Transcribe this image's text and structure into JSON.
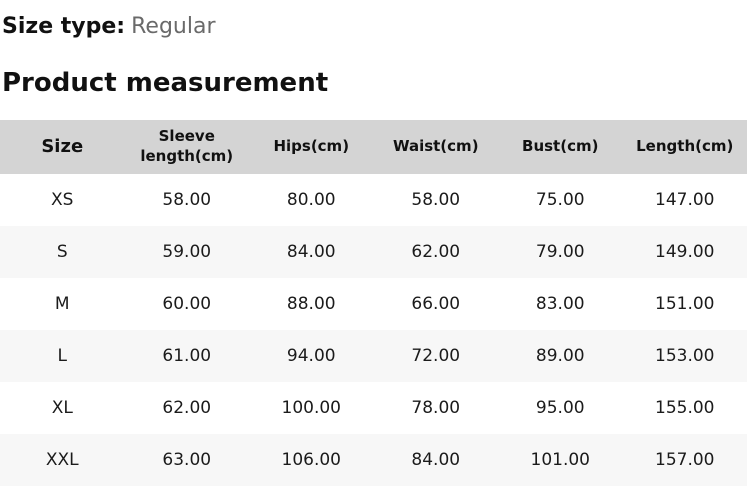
{
  "colors": {
    "page_bg": "#ffffff",
    "table_header_bg": "#d4d4d4",
    "row_alt_bg": "#f7f7f7",
    "heading_text": "#111111",
    "muted_text": "#6a6a6a",
    "cell_text": "#1b1b1b"
  },
  "size_type": {
    "label": "Size type:",
    "value": "Regular"
  },
  "section_title": "Product measurement",
  "table": {
    "columns": [
      "Size",
      "Sleeve\nlength(cm)",
      "Hips(cm)",
      "Waist(cm)",
      "Bust(cm)",
      "Length(cm)"
    ],
    "rows": [
      {
        "size": "XS",
        "values": [
          "58.00",
          "80.00",
          "58.00",
          "75.00",
          "147.00"
        ]
      },
      {
        "size": "S",
        "values": [
          "59.00",
          "84.00",
          "62.00",
          "79.00",
          "149.00"
        ]
      },
      {
        "size": "M",
        "values": [
          "60.00",
          "88.00",
          "66.00",
          "83.00",
          "151.00"
        ]
      },
      {
        "size": "L",
        "values": [
          "61.00",
          "94.00",
          "72.00",
          "89.00",
          "153.00"
        ]
      },
      {
        "size": "XL",
        "values": [
          "62.00",
          "100.00",
          "78.00",
          "95.00",
          "155.00"
        ]
      },
      {
        "size": "XXL",
        "values": [
          "63.00",
          "106.00",
          "84.00",
          "101.00",
          "157.00"
        ]
      }
    ]
  }
}
